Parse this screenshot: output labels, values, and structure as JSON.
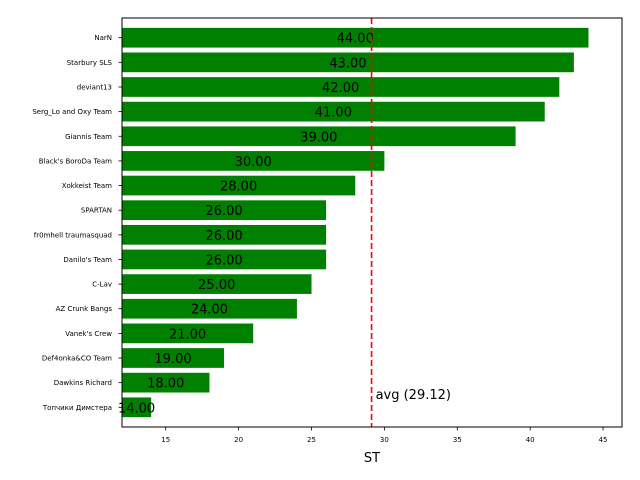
{
  "chart_data": {
    "type": "bar",
    "orientation": "horizontal",
    "categories": [
      "NarN",
      "Starbury SLS",
      "deviant13",
      "Serg_Lo and Oxy Team",
      "Giannis Team",
      "Black's BoroDa Team",
      "Xokkeist Team",
      "SPARTAN",
      "fr0mhell traumasquad",
      "Danilo's Team",
      "C-Lav",
      "AZ Crunk Bangs",
      "Vanek's Crew",
      "Def4onka&CO Team",
      "Dawkins Richard",
      "Топчики Димстера"
    ],
    "values": [
      44,
      43,
      42,
      41,
      39,
      30,
      28,
      26,
      26,
      26,
      25,
      24,
      21,
      19,
      18,
      14
    ],
    "value_labels": [
      "44.00",
      "43.00",
      "42.00",
      "41.00",
      "39.00",
      "30.00",
      "28.00",
      "26.00",
      "26.00",
      "26.00",
      "25.00",
      "24.00",
      "21.00",
      "19.00",
      "18.00",
      "14.00"
    ],
    "xlabel": "ST",
    "ylabel": "",
    "title": "",
    "xlim": [
      12,
      46.3
    ],
    "xticks": [
      15,
      20,
      25,
      30,
      35,
      40,
      45
    ],
    "average": 29.12,
    "average_label": "avg (29.12)",
    "colors": {
      "bar": "#008000",
      "average_line": "#ff0000"
    },
    "grid": false
  }
}
